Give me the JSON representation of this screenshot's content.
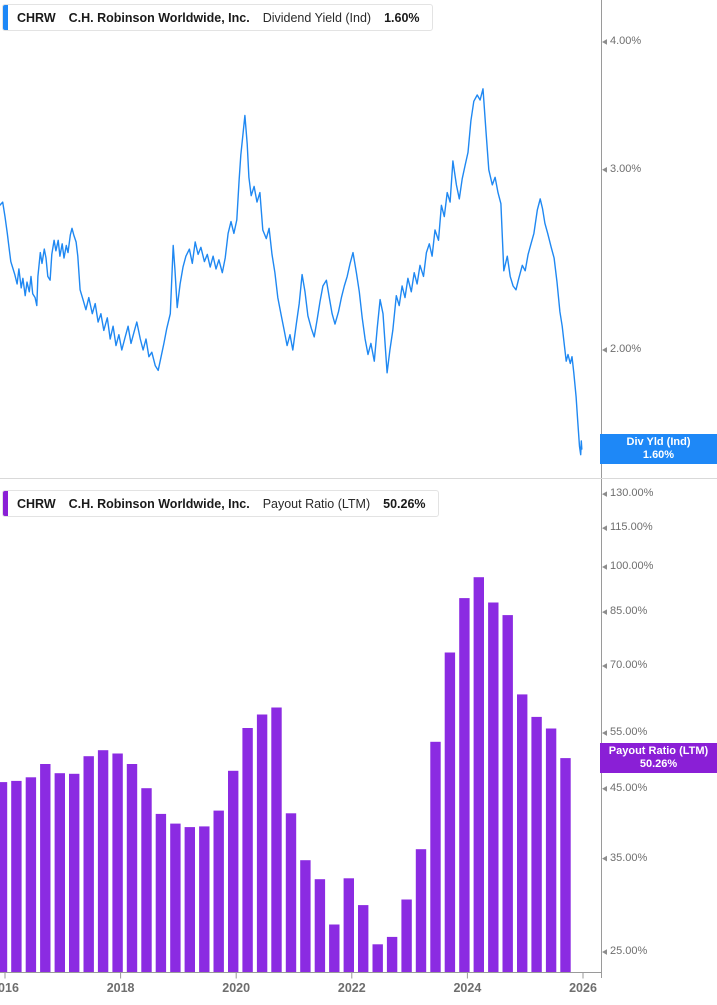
{
  "panels": [
    {
      "header": {
        "ticker": "CHRW",
        "company": "C.H. Robinson Worldwide, Inc.",
        "metric": "Dividend Yield (Ind)",
        "value": "1.60%"
      },
      "value_label": {
        "line1": "Div Yld (Ind)",
        "line2": "1.60%"
      },
      "accent_color": "#1e88f7",
      "label_bg": "#1e88f7"
    },
    {
      "header": {
        "ticker": "CHRW",
        "company": "C.H. Robinson Worldwide, Inc.",
        "metric": "Payout Ratio (LTM)",
        "value": "50.26%"
      },
      "value_label": {
        "line1": "Payout Ratio (LTM)",
        "line2": "50.26%"
      },
      "accent_color": "#8a1fd6",
      "label_bg": "#8a1fd6"
    }
  ],
  "x_axis": {
    "tick_years": [
      2016,
      2018,
      2020,
      2022,
      2024,
      2026
    ],
    "labels": [
      "2016",
      "2018",
      "2020",
      "2022",
      "2024",
      "2026"
    ]
  },
  "chart_data": [
    {
      "type": "line",
      "title": "CHRW Dividend Yield (Ind)",
      "unit": "%",
      "color": "#1f88f2",
      "y_scale": "log",
      "legend_position": "right",
      "grid": false,
      "x_range": [
        2015.9,
        2026.05
      ],
      "y_ticks": {
        "labels": [
          "4.00%",
          "3.00%",
          "2.00%"
        ],
        "values": [
          4.0,
          3.0,
          2.0
        ]
      },
      "last_value": 1.6,
      "points": [
        [
          2015.91,
          2.77
        ],
        [
          2015.96,
          2.79
        ],
        [
          2016.0,
          2.7
        ],
        [
          2016.04,
          2.6
        ],
        [
          2016.07,
          2.52
        ],
        [
          2016.1,
          2.44
        ],
        [
          2016.14,
          2.4
        ],
        [
          2016.17,
          2.37
        ],
        [
          2016.21,
          2.32
        ],
        [
          2016.24,
          2.4
        ],
        [
          2016.28,
          2.3
        ],
        [
          2016.31,
          2.35
        ],
        [
          2016.35,
          2.26
        ],
        [
          2016.38,
          2.33
        ],
        [
          2016.42,
          2.28
        ],
        [
          2016.45,
          2.36
        ],
        [
          2016.48,
          2.27
        ],
        [
          2016.52,
          2.25
        ],
        [
          2016.55,
          2.21
        ],
        [
          2016.57,
          2.36
        ],
        [
          2016.61,
          2.49
        ],
        [
          2016.64,
          2.43
        ],
        [
          2016.68,
          2.51
        ],
        [
          2016.71,
          2.46
        ],
        [
          2016.74,
          2.36
        ],
        [
          2016.78,
          2.34
        ],
        [
          2016.81,
          2.48
        ],
        [
          2016.85,
          2.56
        ],
        [
          2016.88,
          2.5
        ],
        [
          2016.92,
          2.56
        ],
        [
          2016.95,
          2.47
        ],
        [
          2016.99,
          2.54
        ],
        [
          2017.02,
          2.46
        ],
        [
          2017.06,
          2.53
        ],
        [
          2017.09,
          2.49
        ],
        [
          2017.13,
          2.59
        ],
        [
          2017.16,
          2.63
        ],
        [
          2017.19,
          2.59
        ],
        [
          2017.23,
          2.55
        ],
        [
          2017.26,
          2.47
        ],
        [
          2017.3,
          2.29
        ],
        [
          2017.35,
          2.24
        ],
        [
          2017.4,
          2.19
        ],
        [
          2017.45,
          2.25
        ],
        [
          2017.51,
          2.17
        ],
        [
          2017.56,
          2.22
        ],
        [
          2017.61,
          2.13
        ],
        [
          2017.66,
          2.17
        ],
        [
          2017.71,
          2.09
        ],
        [
          2017.77,
          2.15
        ],
        [
          2017.82,
          2.05
        ],
        [
          2017.87,
          2.11
        ],
        [
          2017.92,
          2.02
        ],
        [
          2017.97,
          2.07
        ],
        [
          2018.02,
          2.0
        ],
        [
          2018.08,
          2.06
        ],
        [
          2018.13,
          2.11
        ],
        [
          2018.18,
          2.03
        ],
        [
          2018.23,
          2.08
        ],
        [
          2018.28,
          2.13
        ],
        [
          2018.34,
          2.05
        ],
        [
          2018.39,
          2.0
        ],
        [
          2018.44,
          2.05
        ],
        [
          2018.49,
          1.97
        ],
        [
          2018.54,
          1.99
        ],
        [
          2018.6,
          1.93
        ],
        [
          2018.65,
          1.91
        ],
        [
          2018.7,
          1.97
        ],
        [
          2018.75,
          2.03
        ],
        [
          2018.8,
          2.1
        ],
        [
          2018.86,
          2.17
        ],
        [
          2018.91,
          2.53
        ],
        [
          2018.94,
          2.4
        ],
        [
          2018.98,
          2.2
        ],
        [
          2019.03,
          2.32
        ],
        [
          2019.08,
          2.41
        ],
        [
          2019.13,
          2.47
        ],
        [
          2019.19,
          2.51
        ],
        [
          2019.24,
          2.43
        ],
        [
          2019.29,
          2.55
        ],
        [
          2019.34,
          2.48
        ],
        [
          2019.39,
          2.52
        ],
        [
          2019.45,
          2.44
        ],
        [
          2019.5,
          2.48
        ],
        [
          2019.55,
          2.41
        ],
        [
          2019.6,
          2.47
        ],
        [
          2019.65,
          2.4
        ],
        [
          2019.7,
          2.45
        ],
        [
          2019.76,
          2.38
        ],
        [
          2019.81,
          2.46
        ],
        [
          2019.86,
          2.6
        ],
        [
          2019.91,
          2.67
        ],
        [
          2019.96,
          2.6
        ],
        [
          2020.01,
          2.68
        ],
        [
          2020.05,
          2.93
        ],
        [
          2020.08,
          3.1
        ],
        [
          2020.12,
          3.26
        ],
        [
          2020.15,
          3.39
        ],
        [
          2020.19,
          3.18
        ],
        [
          2020.22,
          2.95
        ],
        [
          2020.26,
          2.83
        ],
        [
          2020.31,
          2.89
        ],
        [
          2020.36,
          2.79
        ],
        [
          2020.41,
          2.85
        ],
        [
          2020.46,
          2.62
        ],
        [
          2020.52,
          2.57
        ],
        [
          2020.57,
          2.63
        ],
        [
          2020.62,
          2.48
        ],
        [
          2020.67,
          2.38
        ],
        [
          2020.72,
          2.25
        ],
        [
          2020.78,
          2.16
        ],
        [
          2020.83,
          2.09
        ],
        [
          2020.88,
          2.02
        ],
        [
          2020.93,
          2.07
        ],
        [
          2020.98,
          2.0
        ],
        [
          2021.04,
          2.12
        ],
        [
          2021.09,
          2.22
        ],
        [
          2021.14,
          2.37
        ],
        [
          2021.19,
          2.28
        ],
        [
          2021.24,
          2.16
        ],
        [
          2021.3,
          2.1
        ],
        [
          2021.35,
          2.06
        ],
        [
          2021.4,
          2.14
        ],
        [
          2021.45,
          2.23
        ],
        [
          2021.5,
          2.31
        ],
        [
          2021.56,
          2.34
        ],
        [
          2021.61,
          2.25
        ],
        [
          2021.66,
          2.17
        ],
        [
          2021.71,
          2.12
        ],
        [
          2021.77,
          2.18
        ],
        [
          2021.82,
          2.25
        ],
        [
          2021.87,
          2.31
        ],
        [
          2021.92,
          2.36
        ],
        [
          2021.97,
          2.43
        ],
        [
          2022.02,
          2.49
        ],
        [
          2022.08,
          2.38
        ],
        [
          2022.13,
          2.28
        ],
        [
          2022.18,
          2.15
        ],
        [
          2022.23,
          2.05
        ],
        [
          2022.28,
          1.98
        ],
        [
          2022.33,
          2.03
        ],
        [
          2022.39,
          1.95
        ],
        [
          2022.44,
          2.1
        ],
        [
          2022.49,
          2.24
        ],
        [
          2022.54,
          2.17
        ],
        [
          2022.61,
          1.9
        ],
        [
          2022.66,
          2.0
        ],
        [
          2022.71,
          2.09
        ],
        [
          2022.77,
          2.26
        ],
        [
          2022.82,
          2.21
        ],
        [
          2022.87,
          2.31
        ],
        [
          2022.92,
          2.25
        ],
        [
          2022.97,
          2.35
        ],
        [
          2023.03,
          2.28
        ],
        [
          2023.08,
          2.38
        ],
        [
          2023.13,
          2.32
        ],
        [
          2023.18,
          2.42
        ],
        [
          2023.24,
          2.36
        ],
        [
          2023.29,
          2.49
        ],
        [
          2023.34,
          2.54
        ],
        [
          2023.39,
          2.47
        ],
        [
          2023.44,
          2.62
        ],
        [
          2023.5,
          2.56
        ],
        [
          2023.55,
          2.77
        ],
        [
          2023.6,
          2.7
        ],
        [
          2023.65,
          2.85
        ],
        [
          2023.7,
          2.79
        ],
        [
          2023.75,
          3.06
        ],
        [
          2023.81,
          2.9
        ],
        [
          2023.86,
          2.81
        ],
        [
          2023.91,
          2.94
        ],
        [
          2023.96,
          3.03
        ],
        [
          2024.01,
          3.12
        ],
        [
          2024.06,
          3.35
        ],
        [
          2024.11,
          3.5
        ],
        [
          2024.17,
          3.55
        ],
        [
          2024.22,
          3.51
        ],
        [
          2024.27,
          3.6
        ],
        [
          2024.32,
          3.28
        ],
        [
          2024.37,
          3.0
        ],
        [
          2024.43,
          2.9
        ],
        [
          2024.48,
          2.95
        ],
        [
          2024.53,
          2.85
        ],
        [
          2024.58,
          2.78
        ],
        [
          2024.63,
          2.39
        ],
        [
          2024.69,
          2.47
        ],
        [
          2024.74,
          2.36
        ],
        [
          2024.79,
          2.31
        ],
        [
          2024.84,
          2.29
        ],
        [
          2024.89,
          2.35
        ],
        [
          2024.95,
          2.42
        ],
        [
          2025.0,
          2.39
        ],
        [
          2025.05,
          2.48
        ],
        [
          2025.1,
          2.54
        ],
        [
          2025.15,
          2.6
        ],
        [
          2025.21,
          2.74
        ],
        [
          2025.26,
          2.81
        ],
        [
          2025.3,
          2.75
        ],
        [
          2025.34,
          2.66
        ],
        [
          2025.39,
          2.6
        ],
        [
          2025.45,
          2.52
        ],
        [
          2025.5,
          2.46
        ],
        [
          2025.55,
          2.33
        ],
        [
          2025.6,
          2.18
        ],
        [
          2025.64,
          2.11
        ],
        [
          2025.67,
          2.04
        ],
        [
          2025.71,
          1.95
        ],
        [
          2025.74,
          1.98
        ],
        [
          2025.78,
          1.94
        ],
        [
          2025.81,
          1.97
        ],
        [
          2025.84,
          1.9
        ],
        [
          2025.88,
          1.8
        ],
        [
          2025.91,
          1.7
        ],
        [
          2025.94,
          1.61
        ],
        [
          2025.96,
          1.58
        ],
        [
          2025.97,
          1.63
        ],
        [
          2025.98,
          1.6
        ]
      ]
    },
    {
      "type": "bar",
      "title": "CHRW Payout Ratio (LTM)",
      "unit": "%",
      "color": "#8b2be2",
      "y_scale": "log",
      "legend_position": "right",
      "grid": false,
      "y_ticks": {
        "labels": [
          "130.00%",
          "115.00%",
          "100.00%",
          "85.00%",
          "70.00%",
          "55.00%",
          "45.00%",
          "35.00%",
          "25.00%"
        ],
        "values": [
          130,
          115,
          100,
          85,
          70,
          55,
          45,
          35,
          25
        ]
      },
      "categories": [
        "2015 Q4",
        "2016 Q1",
        "2016 Q2",
        "2016 Q3",
        "2016 Q4",
        "2017 Q1",
        "2017 Q2",
        "2017 Q3",
        "2017 Q4",
        "2018 Q1",
        "2018 Q2",
        "2018 Q3",
        "2018 Q4",
        "2019 Q1",
        "2019 Q2",
        "2019 Q3",
        "2019 Q4",
        "2020 Q1",
        "2020 Q2",
        "2020 Q3",
        "2020 Q4",
        "2021 Q1",
        "2021 Q2",
        "2021 Q3",
        "2021 Q4",
        "2022 Q1",
        "2022 Q2",
        "2022 Q3",
        "2022 Q4",
        "2023 Q1",
        "2023 Q2",
        "2023 Q3",
        "2023 Q4",
        "2024 Q1",
        "2024 Q2",
        "2024 Q3",
        "2024 Q4",
        "2025 Q1",
        "2025 Q2",
        "2025 Q3"
      ],
      "values": [
        46.1,
        46.3,
        46.9,
        49.2,
        47.6,
        47.5,
        50.6,
        51.7,
        51.1,
        49.2,
        45.1,
        41.1,
        39.7,
        39.2,
        39.3,
        41.6,
        48.0,
        56.0,
        58.8,
        60.3,
        41.2,
        34.8,
        32.5,
        27.6,
        32.6,
        29.6,
        25.7,
        26.4,
        30.2,
        36.2,
        53.3,
        73.5,
        89.4,
        96.4,
        88.0,
        84.1,
        63.2,
        58.3,
        55.9,
        50.26
      ],
      "last_value": 50.26
    }
  ]
}
